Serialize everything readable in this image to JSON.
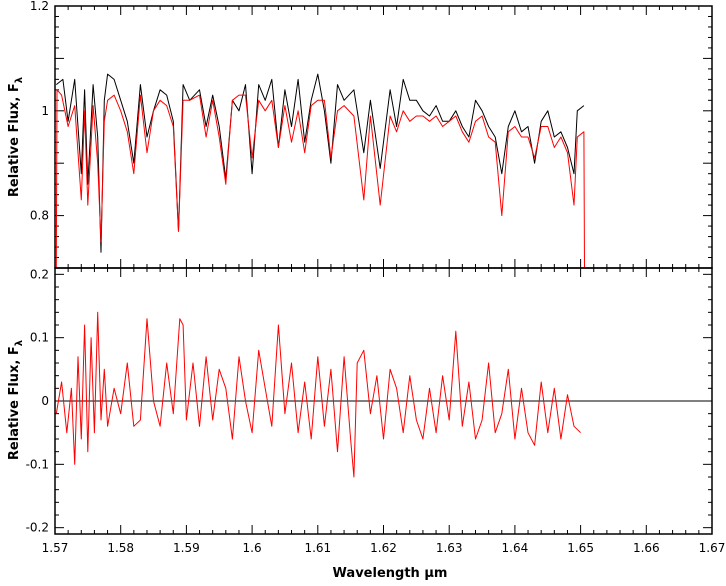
{
  "chart_data": [
    {
      "type": "line",
      "panel": "top",
      "ylabel": "Relative Flux, F",
      "ylabel_subscript": "λ",
      "xlim": [
        1.57,
        1.67
      ],
      "ylim": [
        0.7,
        1.2
      ],
      "x_ticks": [
        1.57,
        1.58,
        1.59,
        1.6,
        1.61,
        1.62,
        1.63,
        1.64,
        1.65,
        1.66,
        1.67
      ],
      "y_ticks": [
        0.8,
        1,
        1.2
      ],
      "y_tick_labels": [
        "0.8",
        "1",
        "1.2"
      ],
      "grid": false,
      "series": [
        {
          "color": "#000000",
          "x": [
            1.5702,
            1.5712,
            1.572,
            1.573,
            1.574,
            1.5745,
            1.575,
            1.5758,
            1.5765,
            1.577,
            1.5775,
            1.578,
            1.579,
            1.58,
            1.581,
            1.582,
            1.583,
            1.584,
            1.585,
            1.586,
            1.587,
            1.588,
            1.5888,
            1.5895,
            1.5905,
            1.592,
            1.593,
            1.594,
            1.595,
            1.596,
            1.597,
            1.598,
            1.599,
            1.6,
            1.601,
            1.602,
            1.603,
            1.604,
            1.605,
            1.606,
            1.607,
            1.608,
            1.609,
            1.61,
            1.611,
            1.612,
            1.613,
            1.614,
            1.6155,
            1.617,
            1.618,
            1.6195,
            1.621,
            1.622,
            1.623,
            1.624,
            1.625,
            1.626,
            1.627,
            1.628,
            1.629,
            1.63,
            1.631,
            1.632,
            1.633,
            1.634,
            1.635,
            1.636,
            1.637,
            1.638,
            1.639,
            1.64,
            1.641,
            1.642,
            1.643,
            1.644,
            1.645,
            1.646,
            1.647,
            1.648,
            1.649,
            1.6495,
            1.6505
          ],
          "y": [
            1.05,
            1.06,
            0.98,
            1.06,
            0.88,
            1.04,
            0.86,
            1.05,
            0.95,
            0.73,
            1.02,
            1.07,
            1.06,
            1.02,
            0.98,
            0.9,
            1.05,
            0.95,
            1.0,
            1.04,
            1.03,
            0.98,
            0.77,
            1.05,
            1.02,
            1.04,
            0.97,
            1.03,
            0.97,
            0.87,
            1.02,
            1.0,
            1.05,
            0.88,
            1.05,
            1.02,
            1.06,
            0.93,
            1.04,
            0.97,
            1.06,
            0.94,
            1.02,
            1.07,
            1.0,
            0.9,
            1.05,
            1.02,
            1.04,
            0.92,
            1.02,
            0.89,
            1.04,
            0.97,
            1.06,
            1.02,
            1.02,
            1.0,
            0.99,
            1.01,
            0.98,
            0.98,
            1.0,
            0.97,
            0.95,
            1.02,
            1.0,
            0.97,
            0.95,
            0.88,
            0.97,
            1.0,
            0.96,
            0.97,
            0.9,
            0.98,
            1.0,
            0.95,
            0.96,
            0.93,
            0.88,
            1.0,
            1.01
          ]
        },
        {
          "color": "#ff0000",
          "x": [
            1.5702,
            1.5703,
            1.571,
            1.572,
            1.573,
            1.574,
            1.5745,
            1.575,
            1.5758,
            1.5765,
            1.577,
            1.5775,
            1.578,
            1.579,
            1.58,
            1.581,
            1.582,
            1.583,
            1.584,
            1.585,
            1.586,
            1.587,
            1.588,
            1.5888,
            1.5895,
            1.5905,
            1.592,
            1.593,
            1.594,
            1.595,
            1.596,
            1.597,
            1.598,
            1.599,
            1.6,
            1.601,
            1.602,
            1.603,
            1.604,
            1.605,
            1.606,
            1.607,
            1.608,
            1.609,
            1.61,
            1.611,
            1.612,
            1.613,
            1.614,
            1.6155,
            1.617,
            1.618,
            1.6195,
            1.621,
            1.622,
            1.623,
            1.624,
            1.625,
            1.626,
            1.627,
            1.628,
            1.629,
            1.63,
            1.631,
            1.632,
            1.633,
            1.634,
            1.635,
            1.636,
            1.637,
            1.638,
            1.639,
            1.64,
            1.641,
            1.642,
            1.643,
            1.644,
            1.645,
            1.646,
            1.647,
            1.648,
            1.649,
            1.6495,
            1.6505,
            1.6506
          ],
          "y": [
            0.7,
            1.04,
            1.03,
            0.97,
            1.01,
            0.83,
            1.0,
            0.82,
            1.01,
            0.9,
            0.75,
            0.98,
            1.02,
            1.03,
            1.0,
            0.96,
            0.88,
            1.03,
            0.92,
            1.0,
            1.02,
            1.01,
            0.97,
            0.77,
            1.02,
            1.02,
            1.03,
            0.95,
            1.02,
            0.95,
            0.86,
            1.02,
            1.03,
            1.03,
            0.91,
            1.02,
            1.0,
            1.02,
            0.93,
            1.01,
            0.94,
            1.0,
            0.92,
            1.01,
            1.02,
            1.02,
            0.91,
            1.0,
            1.01,
            0.99,
            0.83,
            0.99,
            0.82,
            0.99,
            0.96,
            1.0,
            0.98,
            0.99,
            0.99,
            0.98,
            0.99,
            0.97,
            0.98,
            0.99,
            0.96,
            0.94,
            0.98,
            0.99,
            0.95,
            0.94,
            0.8,
            0.96,
            0.97,
            0.95,
            0.95,
            0.91,
            0.97,
            0.97,
            0.93,
            0.95,
            0.92,
            0.82,
            0.95,
            0.96,
            0.7
          ]
        }
      ]
    },
    {
      "type": "line",
      "panel": "bottom",
      "ylabel": "Relative Flux, F",
      "ylabel_subscript": "λ",
      "xlabel": "Wavelength μm",
      "xlim": [
        1.57,
        1.67
      ],
      "ylim": [
        -0.21,
        0.21
      ],
      "x_ticks": [
        1.57,
        1.58,
        1.59,
        1.6,
        1.61,
        1.62,
        1.63,
        1.64,
        1.65,
        1.66,
        1.67
      ],
      "x_tick_labels": [
        "1.57",
        "1.58",
        "1.59",
        "1.6",
        "1.61",
        "1.62",
        "1.63",
        "1.64",
        "1.65",
        "1.66",
        "1.67"
      ],
      "y_ticks": [
        -0.2,
        -0.1,
        0,
        0.1,
        0.2
      ],
      "y_tick_labels": [
        "-0.2",
        "-0.1",
        "0",
        "0.1",
        "0.2"
      ],
      "zero_line": true,
      "grid": false,
      "series": [
        {
          "color": "#ff0000",
          "x": [
            1.5702,
            1.571,
            1.5718,
            1.5725,
            1.573,
            1.5735,
            1.574,
            1.5745,
            1.575,
            1.5755,
            1.576,
            1.5765,
            1.577,
            1.5775,
            1.578,
            1.579,
            1.58,
            1.581,
            1.582,
            1.583,
            1.584,
            1.585,
            1.586,
            1.587,
            1.588,
            1.589,
            1.5895,
            1.59,
            1.591,
            1.592,
            1.593,
            1.594,
            1.595,
            1.596,
            1.597,
            1.598,
            1.599,
            1.6,
            1.601,
            1.602,
            1.603,
            1.604,
            1.605,
            1.606,
            1.607,
            1.608,
            1.609,
            1.61,
            1.611,
            1.612,
            1.613,
            1.614,
            1.615,
            1.6155,
            1.616,
            1.617,
            1.618,
            1.619,
            1.62,
            1.621,
            1.622,
            1.623,
            1.624,
            1.625,
            1.626,
            1.627,
            1.628,
            1.629,
            1.63,
            1.631,
            1.632,
            1.633,
            1.634,
            1.635,
            1.636,
            1.637,
            1.638,
            1.639,
            1.64,
            1.641,
            1.642,
            1.643,
            1.644,
            1.645,
            1.646,
            1.647,
            1.648,
            1.649,
            1.65
          ],
          "y": [
            -0.02,
            0.03,
            -0.05,
            0.02,
            -0.1,
            0.07,
            -0.06,
            0.12,
            -0.08,
            0.1,
            -0.05,
            0.14,
            -0.03,
            0.05,
            -0.04,
            0.02,
            -0.02,
            0.06,
            -0.04,
            -0.03,
            0.13,
            0.0,
            -0.04,
            0.06,
            -0.02,
            0.13,
            0.12,
            -0.03,
            0.06,
            -0.04,
            0.07,
            -0.03,
            0.05,
            0.02,
            -0.06,
            0.07,
            0.0,
            -0.05,
            0.08,
            0.02,
            -0.04,
            0.12,
            -0.02,
            0.06,
            -0.05,
            0.03,
            -0.06,
            0.07,
            -0.04,
            0.05,
            -0.08,
            0.07,
            -0.06,
            -0.12,
            0.06,
            0.08,
            -0.02,
            0.04,
            -0.06,
            0.05,
            0.02,
            -0.05,
            0.04,
            -0.03,
            -0.06,
            0.02,
            -0.05,
            0.04,
            -0.03,
            0.11,
            -0.04,
            0.03,
            -0.06,
            -0.03,
            0.06,
            -0.05,
            -0.02,
            0.05,
            -0.06,
            0.02,
            -0.05,
            -0.07,
            0.03,
            -0.05,
            0.02,
            -0.06,
            0.01,
            -0.04,
            -0.05
          ]
        }
      ]
    }
  ]
}
